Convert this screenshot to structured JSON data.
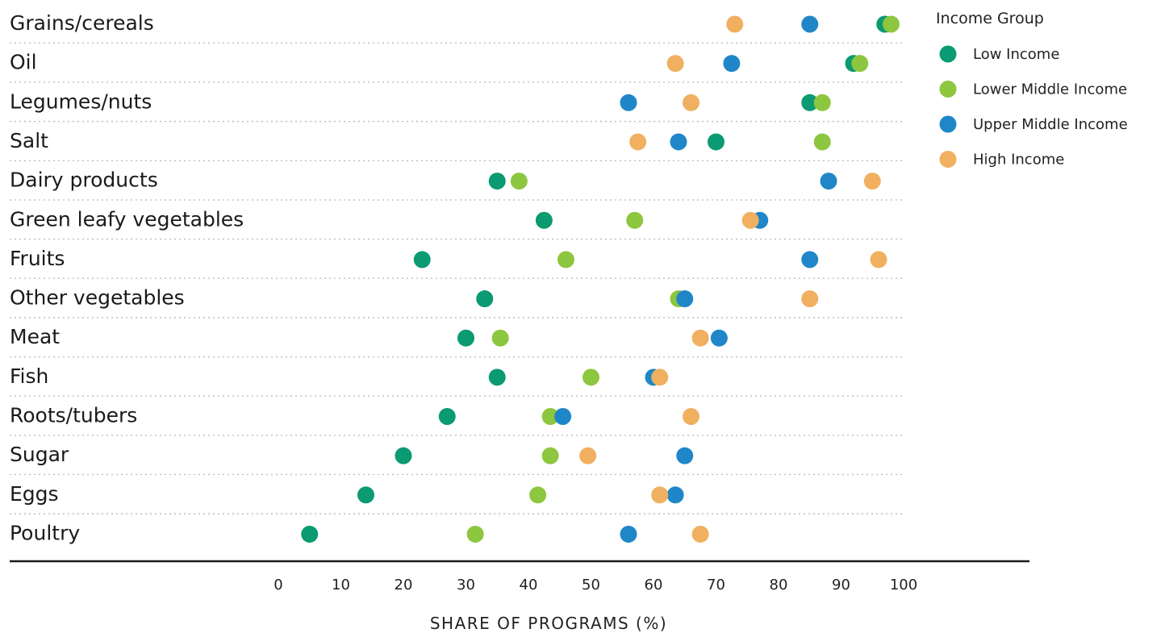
{
  "chart_data": {
    "type": "scatter",
    "categories": [
      "Grains/cereals",
      "Oil",
      "Legumes/nuts",
      "Salt",
      "Dairy products",
      "Green leafy vegetables",
      "Fruits",
      "Other vegetables",
      "Meat",
      "Fish",
      "Roots/tubers",
      "Sugar",
      "Eggs",
      "Poultry"
    ],
    "series": [
      {
        "name": "Low Income",
        "color": "#0b9a72",
        "values": [
          97,
          92,
          85,
          70,
          35,
          42.5,
          23,
          33,
          30,
          35,
          27,
          20,
          14,
          5
        ]
      },
      {
        "name": "Lower Middle Income",
        "color": "#8dc63f",
        "values": [
          98,
          93,
          87,
          87,
          38.5,
          57,
          46,
          64,
          35.5,
          50,
          43.5,
          43.5,
          41.5,
          31.5
        ]
      },
      {
        "name": "Upper Middle Income",
        "color": "#1f87c8",
        "values": [
          85,
          72.5,
          56,
          64,
          88,
          77,
          85,
          65,
          70.5,
          60,
          45.5,
          65,
          63.5,
          56
        ]
      },
      {
        "name": "High Income",
        "color": "#f0b060",
        "values": [
          73,
          63.5,
          66,
          57.5,
          95,
          75.5,
          96,
          85,
          67.5,
          61,
          66,
          49.5,
          61,
          67.5
        ]
      }
    ],
    "xlabel": "SHARE OF PROGRAMS (%)",
    "ylabel": "",
    "xlim": [
      0,
      100
    ],
    "xticks": [
      "0",
      "10",
      "20",
      "30",
      "40",
      "50",
      "60",
      "70",
      "80",
      "90",
      "100"
    ],
    "grid": "dotted horizontal row guides",
    "legend_title": "Income Group",
    "legend_position": "top-right"
  }
}
